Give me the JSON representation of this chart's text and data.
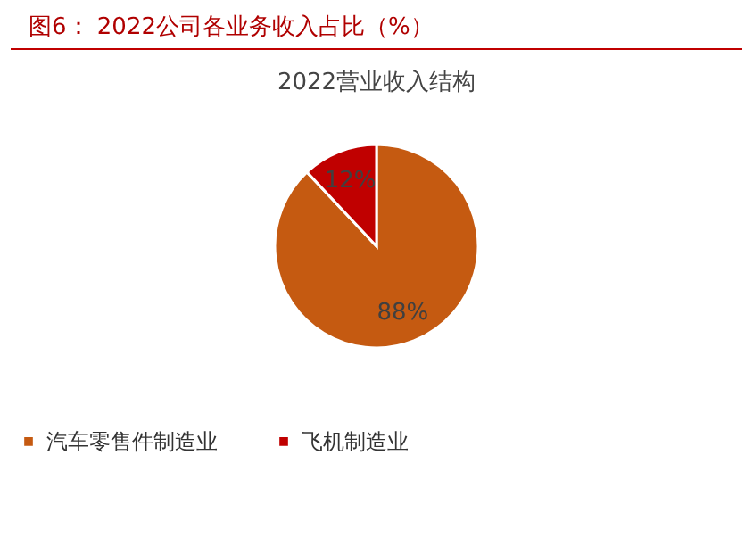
{
  "chart_data": {
    "type": "pie",
    "title": "图6：  2022公司各业务收入占比（%）",
    "subtitle": "2022营业收入结构",
    "categories": [
      "汽车零售件制造业",
      "飞机制造业"
    ],
    "values": [
      88,
      12
    ],
    "colors": [
      "#c55a11",
      "#c00000"
    ],
    "value_labels": [
      "88%",
      "12%"
    ],
    "legend": "bottom"
  }
}
